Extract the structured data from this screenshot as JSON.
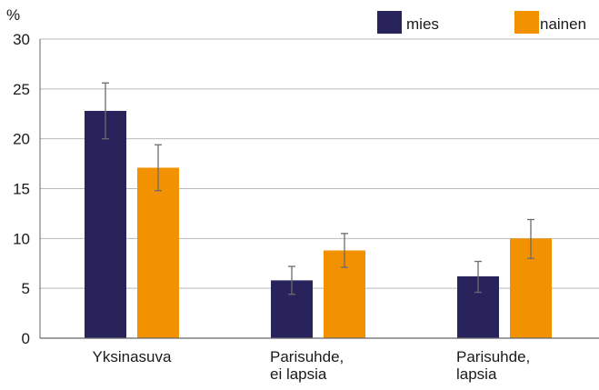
{
  "chart_data": {
    "type": "bar",
    "unit_label": "%",
    "categories": [
      [
        "Yksinasuva"
      ],
      [
        "Parisuhde,",
        "ei lapsia"
      ],
      [
        "Parisuhde,",
        "lapsia"
      ]
    ],
    "series": [
      {
        "name": "mies",
        "color": "#29235c",
        "values": [
          22.8,
          5.8,
          6.2
        ],
        "err_low": [
          20.0,
          4.4,
          4.6
        ],
        "err_high": [
          25.6,
          7.2,
          7.7
        ]
      },
      {
        "name": "nainen",
        "color": "#f39200",
        "values": [
          17.1,
          8.8,
          10.0
        ],
        "err_low": [
          14.8,
          7.1,
          8.0
        ],
        "err_high": [
          19.4,
          10.5,
          11.9
        ]
      }
    ],
    "ylim": [
      0,
      30
    ],
    "yticks": [
      0,
      5,
      10,
      15,
      20,
      25,
      30
    ],
    "grid": true,
    "legend_position": "top-right",
    "colors": {
      "grid": "#b9b9b9",
      "axis": "#666666",
      "error_bar": "#6b6b6b",
      "text": "#1a1a1a"
    }
  }
}
